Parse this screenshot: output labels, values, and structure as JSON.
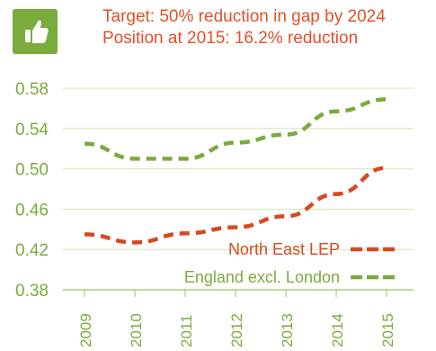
{
  "badge": {
    "icon": "thumbs-up-icon",
    "color": "#7bab3c"
  },
  "headline": {
    "line1": "Target: 50% reduction in gap by 2024",
    "line2": "Position at 2015: 16.2% reduction",
    "color": "#e2502a"
  },
  "chart_data": {
    "type": "line",
    "title": "",
    "xlabel": "",
    "ylabel": "",
    "x": [
      "2009",
      "2010",
      "2011",
      "2012",
      "2013",
      "2014",
      "2015"
    ],
    "y_ticks": [
      "0.58",
      "0.54",
      "0.50",
      "0.46",
      "0.42",
      "0.38"
    ],
    "ylim": [
      0.38,
      0.58
    ],
    "grid": "horizontal",
    "legend_position": "bottom-right",
    "series": [
      {
        "name": "North East LEP",
        "color": "#d64a1f",
        "values": [
          0.435,
          0.427,
          0.436,
          0.442,
          0.453,
          0.475,
          0.501
        ]
      },
      {
        "name": "England excl. London",
        "color": "#7bab3c",
        "values": [
          0.525,
          0.51,
          0.51,
          0.526,
          0.534,
          0.557,
          0.569
        ]
      }
    ]
  }
}
